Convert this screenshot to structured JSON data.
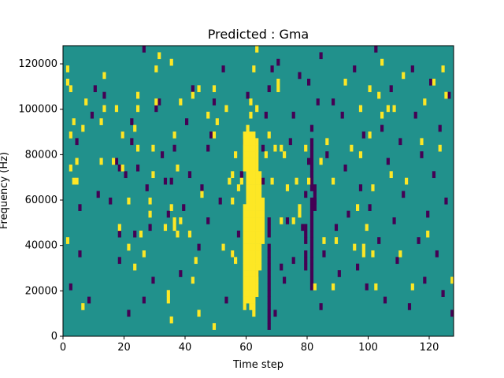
{
  "chart_data": {
    "type": "heatmap",
    "title": "Predicted : Gma",
    "xlabel": "Time step",
    "ylabel": "Frequency (Hz)",
    "xlim": [
      0,
      128
    ],
    "ylim": [
      0,
      128000
    ],
    "x_ticks": [
      0,
      20,
      40,
      60,
      80,
      100,
      120
    ],
    "y_ticks": [
      0,
      20000,
      40000,
      60000,
      80000,
      100000,
      120000
    ],
    "colors": {
      "low": "#440154",
      "mid": "#21918c",
      "high": "#fde725"
    },
    "background_level": "mid",
    "n_freq_bins": 44,
    "freq_bin_hz": 2909,
    "grid": false,
    "sparse_cells": {
      "high": [
        [
          1,
          40
        ],
        [
          1,
          38
        ],
        [
          1,
          14
        ],
        [
          2,
          30
        ],
        [
          2,
          37
        ],
        [
          2,
          25
        ],
        [
          3,
          32
        ],
        [
          3,
          23
        ],
        [
          4,
          26
        ],
        [
          4,
          23
        ],
        [
          6,
          4
        ],
        [
          6,
          31
        ],
        [
          7,
          35
        ],
        [
          12,
          26
        ],
        [
          12,
          32
        ],
        [
          13,
          34
        ],
        [
          13,
          39
        ],
        [
          16,
          26
        ],
        [
          17,
          34
        ],
        [
          18,
          16
        ],
        [
          19,
          30
        ],
        [
          19,
          25
        ],
        [
          21,
          20
        ],
        [
          21,
          13
        ],
        [
          23,
          10
        ],
        [
          23,
          31
        ],
        [
          24,
          28
        ],
        [
          24,
          36
        ],
        [
          24,
          34
        ],
        [
          25,
          15
        ],
        [
          26,
          12
        ],
        [
          28,
          20
        ],
        [
          28,
          18
        ],
        [
          29,
          28
        ],
        [
          29,
          24
        ],
        [
          30,
          35
        ],
        [
          30,
          40
        ],
        [
          31,
          42
        ],
        [
          33,
          16
        ],
        [
          34,
          6
        ],
        [
          34,
          5
        ],
        [
          35,
          41
        ],
        [
          35,
          19
        ],
        [
          35,
          2
        ],
        [
          36,
          17
        ],
        [
          36,
          30
        ],
        [
          36,
          16
        ],
        [
          37,
          15
        ],
        [
          37,
          25
        ],
        [
          38,
          17
        ],
        [
          38,
          35
        ],
        [
          41,
          15
        ],
        [
          42,
          36
        ],
        [
          42,
          8
        ],
        [
          43,
          11
        ],
        [
          44,
          3
        ],
        [
          44,
          37
        ],
        [
          45,
          21
        ],
        [
          47,
          33
        ],
        [
          49,
          1
        ],
        [
          49,
          37
        ],
        [
          49,
          30
        ],
        [
          50,
          32
        ],
        [
          52,
          13
        ],
        [
          53,
          34
        ],
        [
          54,
          23
        ],
        [
          55,
          12
        ],
        [
          55,
          20
        ],
        [
          55,
          24
        ],
        [
          56,
          11
        ],
        [
          56,
          27
        ],
        [
          57,
          22
        ],
        [
          58,
          23
        ],
        [
          60,
          31
        ],
        [
          61,
          35
        ],
        [
          61,
          33
        ],
        [
          62,
          40
        ],
        [
          63,
          43
        ],
        [
          63,
          34
        ],
        [
          66,
          27
        ],
        [
          67,
          30
        ],
        [
          68,
          23
        ],
        [
          69,
          28
        ],
        [
          70,
          38
        ],
        [
          70,
          37
        ],
        [
          71,
          17
        ],
        [
          71,
          28
        ],
        [
          72,
          27
        ],
        [
          73,
          22
        ],
        [
          75,
          17
        ],
        [
          76,
          23
        ],
        [
          77,
          18
        ],
        [
          77,
          19
        ],
        [
          79,
          28
        ],
        [
          80,
          23
        ],
        [
          82,
          7
        ],
        [
          84,
          26
        ],
        [
          85,
          14
        ],
        [
          86,
          29
        ],
        [
          88,
          7
        ],
        [
          88,
          23
        ],
        [
          89,
          14
        ],
        [
          92,
          38
        ],
        [
          94,
          28
        ],
        [
          95,
          13
        ],
        [
          96,
          19
        ],
        [
          97,
          27
        ],
        [
          97,
          34
        ],
        [
          98,
          12
        ],
        [
          98,
          13
        ],
        [
          99,
          16
        ],
        [
          100,
          37
        ],
        [
          100,
          30
        ],
        [
          101,
          12
        ],
        [
          101,
          22
        ],
        [
          102,
          7
        ],
        [
          103,
          36
        ],
        [
          104,
          41
        ],
        [
          104,
          33
        ],
        [
          106,
          34
        ],
        [
          107,
          24
        ],
        [
          108,
          34
        ],
        [
          110,
          12
        ],
        [
          111,
          39
        ],
        [
          112,
          23
        ],
        [
          114,
          7
        ],
        [
          117,
          29
        ],
        [
          118,
          35
        ],
        [
          119,
          15
        ],
        [
          121,
          38
        ],
        [
          123,
          28
        ],
        [
          124,
          40
        ],
        [
          125,
          36
        ],
        [
          127,
          8
        ]
      ],
      "low": [
        [
          2,
          7
        ],
        [
          4,
          29
        ],
        [
          5,
          12
        ],
        [
          5,
          19
        ],
        [
          8,
          5
        ],
        [
          9,
          33
        ],
        [
          10,
          37
        ],
        [
          11,
          21
        ],
        [
          13,
          36
        ],
        [
          15,
          20
        ],
        [
          17,
          26
        ],
        [
          18,
          15
        ],
        [
          18,
          25
        ],
        [
          18,
          11
        ],
        [
          19,
          30
        ],
        [
          20,
          24
        ],
        [
          21,
          3
        ],
        [
          22,
          29
        ],
        [
          22,
          32
        ],
        [
          23,
          15
        ],
        [
          24,
          25
        ],
        [
          26,
          43
        ],
        [
          26,
          5
        ],
        [
          27,
          22
        ],
        [
          28,
          16
        ],
        [
          29,
          8
        ],
        [
          30,
          34
        ],
        [
          31,
          35
        ],
        [
          32,
          27
        ],
        [
          33,
          23
        ],
        [
          34,
          18
        ],
        [
          35,
          23
        ],
        [
          36,
          28
        ],
        [
          38,
          9
        ],
        [
          39,
          19
        ],
        [
          40,
          32
        ],
        [
          41,
          24
        ],
        [
          42,
          37
        ],
        [
          44,
          13
        ],
        [
          45,
          22
        ],
        [
          47,
          17
        ],
        [
          47,
          28
        ],
        [
          48,
          30
        ],
        [
          49,
          35
        ],
        [
          51,
          20
        ],
        [
          52,
          40
        ],
        [
          53,
          5
        ],
        [
          55,
          12
        ],
        [
          57,
          15
        ],
        [
          58,
          24
        ],
        [
          59,
          29
        ],
        [
          60,
          36
        ],
        [
          61,
          6
        ],
        [
          63,
          9
        ],
        [
          64,
          14
        ],
        [
          64,
          19
        ],
        [
          65,
          23
        ],
        [
          65,
          28
        ],
        [
          66,
          33
        ],
        [
          67,
          37
        ],
        [
          68,
          40
        ],
        [
          69,
          3
        ],
        [
          70,
          41
        ],
        [
          71,
          10
        ],
        [
          72,
          8
        ],
        [
          73,
          17
        ],
        [
          74,
          29
        ],
        [
          75,
          33
        ],
        [
          75,
          11
        ],
        [
          77,
          39
        ],
        [
          78,
          16
        ],
        [
          79,
          21
        ],
        [
          80,
          26
        ],
        [
          80,
          38
        ],
        [
          81,
          31
        ],
        [
          82,
          20
        ],
        [
          83,
          35
        ],
        [
          84,
          4
        ],
        [
          84,
          42
        ],
        [
          85,
          12
        ],
        [
          86,
          27
        ],
        [
          88,
          35
        ],
        [
          89,
          16
        ],
        [
          90,
          9
        ],
        [
          91,
          33
        ],
        [
          92,
          25
        ],
        [
          93,
          18
        ],
        [
          95,
          40
        ],
        [
          96,
          10
        ],
        [
          97,
          22
        ],
        [
          98,
          30
        ],
        [
          99,
          7
        ],
        [
          100,
          19
        ],
        [
          102,
          43
        ],
        [
          103,
          14
        ],
        [
          104,
          31
        ],
        [
          105,
          5
        ],
        [
          106,
          26
        ],
        [
          107,
          37
        ],
        [
          108,
          17
        ],
        [
          109,
          11
        ],
        [
          110,
          29
        ],
        [
          111,
          21
        ],
        [
          113,
          4
        ],
        [
          114,
          40
        ],
        [
          115,
          33
        ],
        [
          116,
          14
        ],
        [
          117,
          27
        ],
        [
          118,
          8
        ],
        [
          119,
          18
        ],
        [
          120,
          38
        ],
        [
          121,
          24
        ],
        [
          122,
          12
        ],
        [
          123,
          31
        ],
        [
          124,
          6
        ],
        [
          125,
          20
        ],
        [
          126,
          36
        ],
        [
          127,
          3
        ]
      ]
    },
    "high_column_runs": [
      [
        59,
        4,
        19
      ],
      [
        59,
        25,
        30
      ],
      [
        60,
        5,
        30
      ],
      [
        61,
        4,
        30
      ],
      [
        62,
        3,
        30
      ],
      [
        63,
        6,
        29
      ],
      [
        64,
        10,
        24
      ],
      [
        65,
        14,
        20
      ]
    ],
    "low_column_runs": [
      [
        67,
        1,
        13
      ],
      [
        67,
        15,
        17
      ],
      [
        79,
        10,
        12
      ],
      [
        79,
        14,
        16
      ],
      [
        81,
        7,
        20
      ],
      [
        81,
        22,
        29
      ],
      [
        82,
        19,
        22
      ]
    ]
  }
}
